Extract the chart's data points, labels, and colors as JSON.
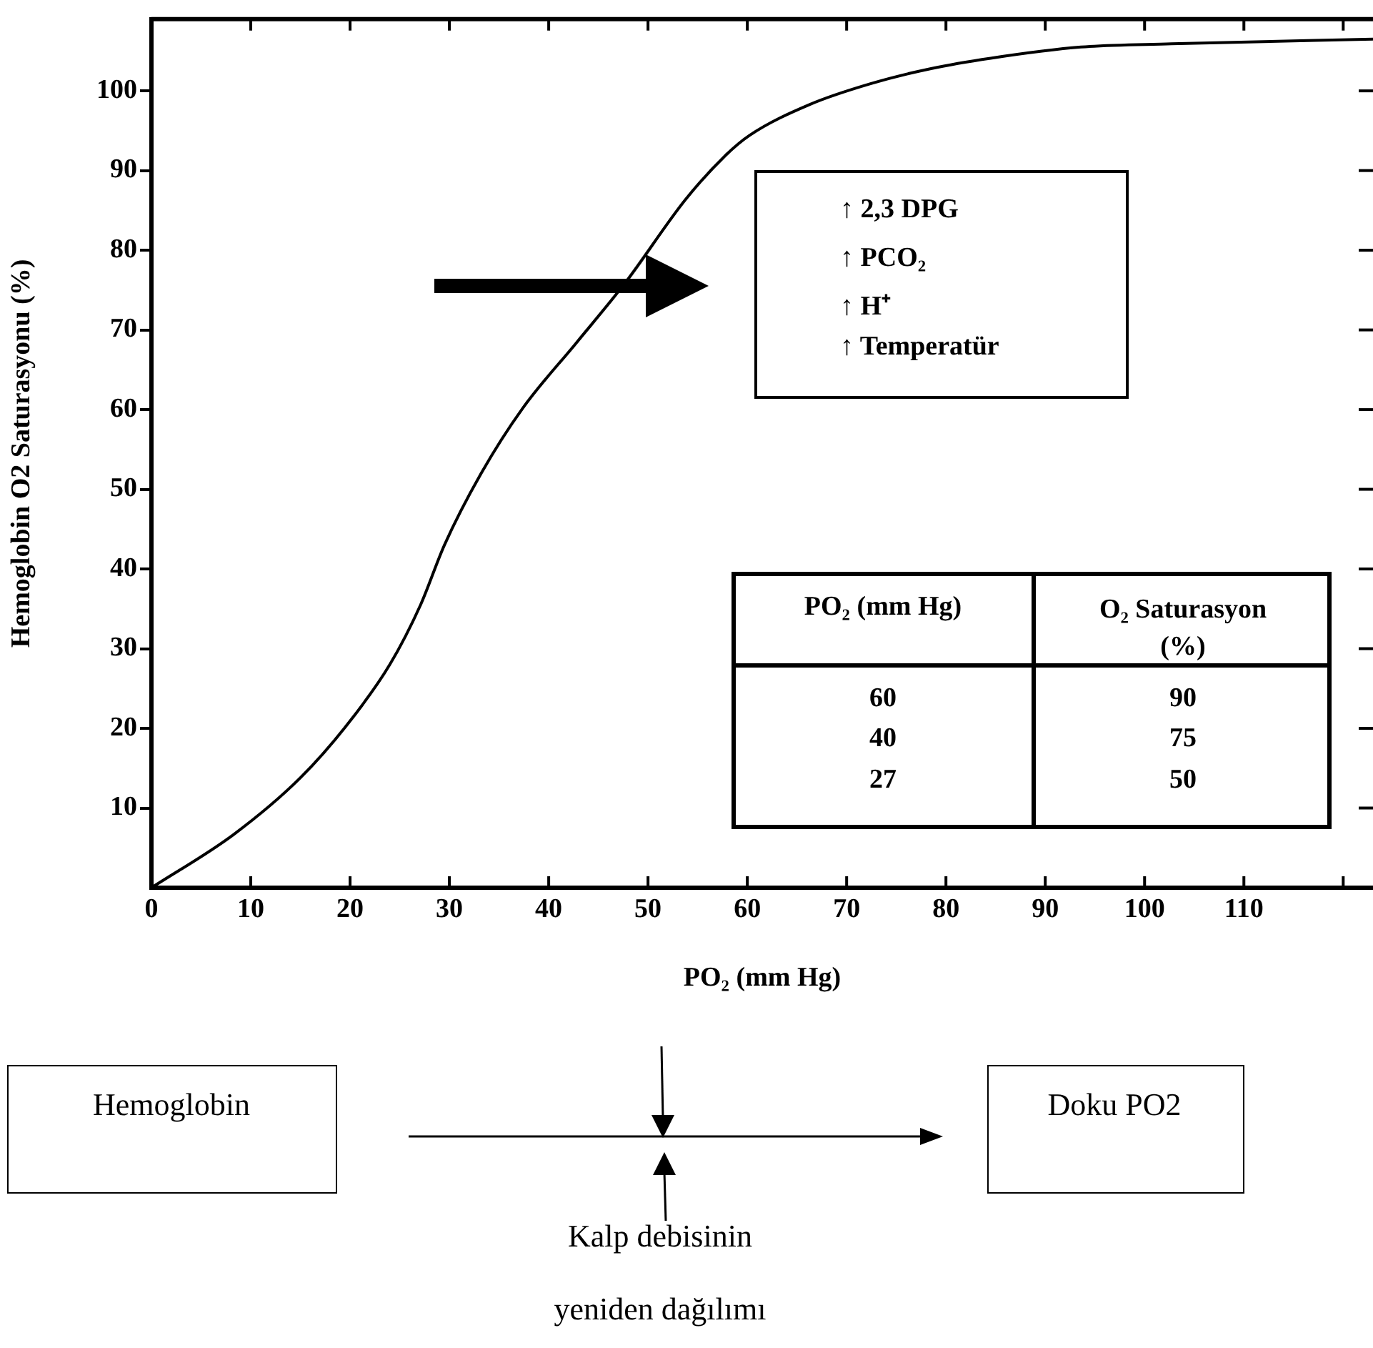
{
  "chart_data": {
    "type": "line",
    "xlabel": "PO₂ (mm Hg)",
    "ylabel": "Hemoglobin O2 Saturasyonu (%)",
    "color": "#000000",
    "x": [
      0,
      8.3,
      15,
      19.8,
      24,
      27.1,
      29.5,
      33.2,
      37.4,
      42.8,
      47.7,
      53.8,
      57.8,
      60.2,
      66.3,
      72.4,
      78.5,
      84.5,
      93.6,
      102.7,
      123
    ],
    "values": [
      0,
      6.7,
      13.8,
      20.6,
      28,
      35.5,
      43,
      52,
      60.2,
      68.4,
      75.9,
      86.4,
      91.9,
      94.4,
      98.3,
      100.9,
      102.8,
      104.1,
      105.5,
      105.9,
      106.5
    ],
    "xlim": [
      0,
      123
    ],
    "xticks": [
      0,
      10,
      20,
      30,
      40,
      50,
      60,
      70,
      80,
      90,
      100,
      110,
      {
        "value": 120,
        "label": null
      }
    ],
    "ylim": [
      0,
      109
    ],
    "yticks": [
      10,
      20,
      30,
      40,
      50,
      60,
      70,
      80,
      90,
      100
    ],
    "annotations": [
      "↑ 2,3 DPG",
      "↑ PCO₂",
      "↑ H⁺",
      "↑ Temperatür",
      "PO₂ (mm Hg)",
      "O₂ Saturasyon (%)",
      "60",
      "40",
      "27",
      "90",
      "75",
      "50",
      "Hemoglobin",
      "Doku PO2",
      "Kalp debisinin",
      "yeniden dağılımı"
    ]
  }
}
